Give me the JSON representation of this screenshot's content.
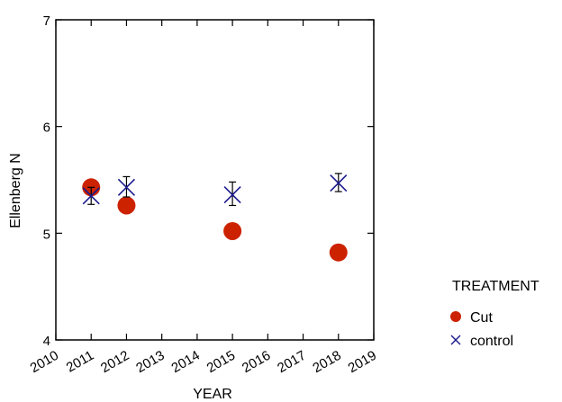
{
  "chart_data": {
    "type": "scatter",
    "xlabel": "YEAR",
    "ylabel": "Ellenberg N",
    "xlim": [
      2010,
      2019
    ],
    "ylim": [
      4,
      7
    ],
    "xticks": [
      "2010",
      "2011",
      "2012",
      "2013",
      "2014",
      "2015",
      "2016",
      "2017",
      "2018",
      "2019"
    ],
    "yticks": [
      "4",
      "5",
      "6",
      "7"
    ],
    "grid": false,
    "legend": {
      "title": "TREATMENT",
      "placement": "right"
    },
    "series": [
      {
        "name": "Cut",
        "marker": "filled-circle",
        "color": "#cc2200",
        "points": [
          {
            "x": 2011,
            "y": 5.43
          },
          {
            "x": 2012,
            "y": 5.26
          },
          {
            "x": 2015,
            "y": 5.02
          },
          {
            "x": 2018,
            "y": 4.82
          }
        ]
      },
      {
        "name": "control",
        "marker": "cross",
        "color": "#1a1a8c",
        "points": [
          {
            "x": 2011,
            "y": 5.35,
            "err_low": 5.27,
            "err_high": 5.43
          },
          {
            "x": 2012,
            "y": 5.43,
            "err_low": 5.34,
            "err_high": 5.53
          },
          {
            "x": 2015,
            "y": 5.36,
            "err_low": 5.26,
            "err_high": 5.48
          },
          {
            "x": 2018,
            "y": 5.47,
            "err_low": 5.39,
            "err_high": 5.56
          }
        ]
      }
    ]
  }
}
